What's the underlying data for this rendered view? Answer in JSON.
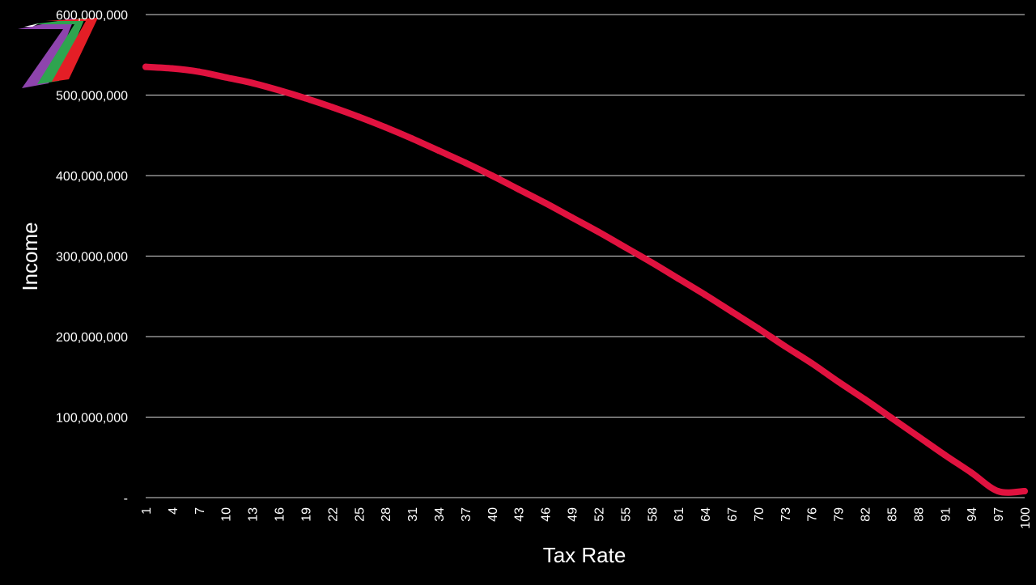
{
  "colors": {
    "background": "#000000",
    "series_line": "#e0123f",
    "gridline": "#d9d9d9",
    "text": "#ffffff",
    "logo_purple": "#8e44ad",
    "logo_green": "#2ea44f",
    "logo_red": "#e41e26",
    "logo_white": "#ffffff"
  },
  "logo": {
    "icon": "seven-chevron-logo-icon"
  },
  "chart_data": {
    "type": "line",
    "title": "",
    "xlabel": "Tax Rate",
    "ylabel": "Income",
    "x_range": [
      1,
      100
    ],
    "ylim": [
      0,
      600000000
    ],
    "grid": true,
    "y_ticks": [
      {
        "value": 0,
        "label": "-"
      },
      {
        "value": 100000000,
        "label": "100,000,000"
      },
      {
        "value": 200000000,
        "label": "200,000,000"
      },
      {
        "value": 300000000,
        "label": "300,000,000"
      },
      {
        "value": 400000000,
        "label": "400,000,000"
      },
      {
        "value": 500000000,
        "label": "500,000,000"
      },
      {
        "value": 600000000,
        "label": "600,000,000"
      }
    ],
    "x_tick_labels": [
      "1",
      "4",
      "7",
      "10",
      "13",
      "16",
      "19",
      "22",
      "25",
      "28",
      "31",
      "34",
      "37",
      "40",
      "43",
      "46",
      "49",
      "52",
      "55",
      "58",
      "61",
      "64",
      "67",
      "70",
      "73",
      "76",
      "79",
      "82",
      "85",
      "88",
      "91",
      "94",
      "97",
      "100"
    ],
    "series": [
      {
        "x": [
          1,
          4,
          7,
          10,
          13,
          16,
          19,
          22,
          25,
          28,
          31,
          34,
          37,
          40,
          43,
          46,
          49,
          52,
          55,
          58,
          61,
          64,
          67,
          70,
          73,
          76,
          79,
          82,
          85,
          88,
          91,
          94,
          97,
          100
        ],
        "values": [
          535000000,
          533000000,
          529000000,
          522000000,
          515000000,
          506000000,
          496000000,
          485000000,
          473000000,
          460000000,
          446000000,
          431000000,
          416000000,
          400000000,
          383000000,
          366000000,
          348000000,
          330000000,
          311000000,
          292000000,
          272000000,
          252000000,
          231000000,
          210000000,
          188000000,
          167000000,
          144000000,
          122000000,
          99000000,
          76000000,
          53000000,
          31000000,
          8000000,
          8000000
        ]
      }
    ]
  }
}
